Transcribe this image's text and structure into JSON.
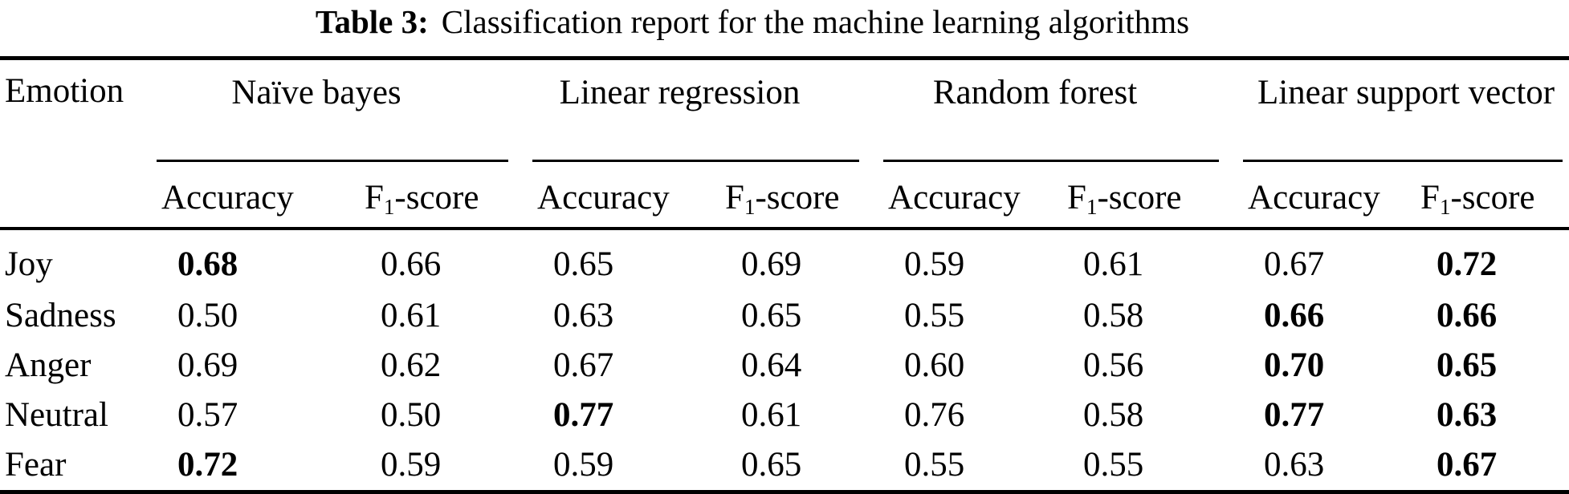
{
  "caption": {
    "label": "Table 3:",
    "text": "Classification report for the machine learning algorithms"
  },
  "table": {
    "emotion_header": "Emotion",
    "groups": [
      {
        "name": "Naïve bayes"
      },
      {
        "name": "Linear regression"
      },
      {
        "name": "Random forest"
      },
      {
        "name": "Linear support vector"
      }
    ],
    "metric_headers": {
      "accuracy": "Accuracy",
      "f1": {
        "base": "F",
        "sub": "1",
        "rest": "-score"
      }
    },
    "rows": [
      {
        "emotion": "Joy",
        "cells": [
          {
            "v": "0.68",
            "bold": true
          },
          {
            "v": "0.66",
            "bold": false
          },
          {
            "v": "0.65",
            "bold": false
          },
          {
            "v": "0.69",
            "bold": false
          },
          {
            "v": "0.59",
            "bold": false
          },
          {
            "v": "0.61",
            "bold": false
          },
          {
            "v": "0.67",
            "bold": false
          },
          {
            "v": "0.72",
            "bold": true
          }
        ]
      },
      {
        "emotion": "Sadness",
        "cells": [
          {
            "v": "0.50",
            "bold": false
          },
          {
            "v": "0.61",
            "bold": false
          },
          {
            "v": "0.63",
            "bold": false
          },
          {
            "v": "0.65",
            "bold": false
          },
          {
            "v": "0.55",
            "bold": false
          },
          {
            "v": "0.58",
            "bold": false
          },
          {
            "v": "0.66",
            "bold": true
          },
          {
            "v": "0.66",
            "bold": true
          }
        ]
      },
      {
        "emotion": "Anger",
        "cells": [
          {
            "v": "0.69",
            "bold": false
          },
          {
            "v": "0.62",
            "bold": false
          },
          {
            "v": "0.67",
            "bold": false
          },
          {
            "v": "0.64",
            "bold": false
          },
          {
            "v": "0.60",
            "bold": false
          },
          {
            "v": "0.56",
            "bold": false
          },
          {
            "v": "0.70",
            "bold": true
          },
          {
            "v": "0.65",
            "bold": true
          }
        ]
      },
      {
        "emotion": "Neutral",
        "cells": [
          {
            "v": "0.57",
            "bold": false
          },
          {
            "v": "0.50",
            "bold": false
          },
          {
            "v": "0.77",
            "bold": true
          },
          {
            "v": "0.61",
            "bold": false
          },
          {
            "v": "0.76",
            "bold": false
          },
          {
            "v": "0.58",
            "bold": false
          },
          {
            "v": "0.77",
            "bold": true
          },
          {
            "v": "0.63",
            "bold": true
          }
        ]
      },
      {
        "emotion": "Fear",
        "cells": [
          {
            "v": "0.72",
            "bold": true
          },
          {
            "v": "0.59",
            "bold": false
          },
          {
            "v": "0.59",
            "bold": false
          },
          {
            "v": "0.65",
            "bold": false
          },
          {
            "v": "0.55",
            "bold": false
          },
          {
            "v": "0.55",
            "bold": false
          },
          {
            "v": "0.63",
            "bold": false
          },
          {
            "v": "0.67",
            "bold": true
          }
        ]
      }
    ]
  }
}
